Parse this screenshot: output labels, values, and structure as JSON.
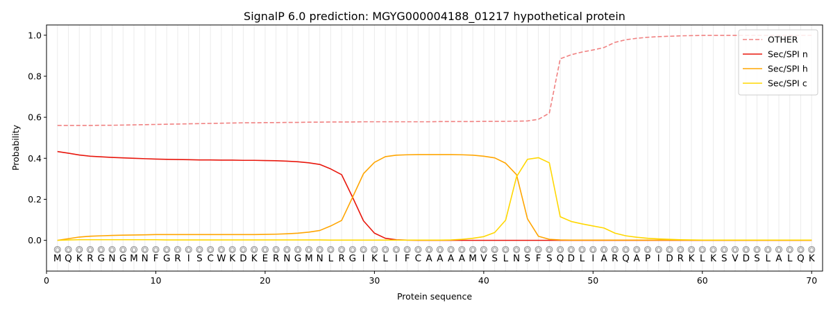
{
  "chart_data": {
    "type": "line",
    "title": "SignalP 6.0 prediction: MGYG000004188_01217 hypothetical protein",
    "xlabel": "Protein sequence",
    "ylabel": "Probability",
    "xlim": [
      0,
      71
    ],
    "ylim": [
      -0.15,
      1.05
    ],
    "x_ticks": [
      0,
      10,
      20,
      30,
      40,
      50,
      60,
      70
    ],
    "y_ticks": [
      0.0,
      0.2,
      0.4,
      0.6,
      0.8,
      1.0
    ],
    "x_tick_labels": [
      "0",
      "10",
      "20",
      "30",
      "40",
      "50",
      "60",
      "70"
    ],
    "y_tick_labels": [
      "0.0",
      "0.2",
      "0.4",
      "0.6",
      "0.8",
      "1.0"
    ],
    "sequence": [
      "M",
      "Q",
      "K",
      "R",
      "G",
      "N",
      "G",
      "M",
      "N",
      "F",
      "G",
      "R",
      "I",
      "S",
      "C",
      "W",
      "K",
      "D",
      "K",
      "E",
      "R",
      "N",
      "G",
      "M",
      "N",
      "L",
      "R",
      "G",
      "I",
      "K",
      "L",
      "I",
      "F",
      "C",
      "A",
      "A",
      "A",
      "A",
      "M",
      "V",
      "S",
      "L",
      "N",
      "S",
      "F",
      "S",
      "Q",
      "D",
      "L",
      "I",
      "A",
      "R",
      "Q",
      "A",
      "P",
      "I",
      "D",
      "R",
      "K",
      "L",
      "K",
      "S",
      "V",
      "D",
      "S",
      "L",
      "A",
      "L",
      "Q",
      "K"
    ],
    "region_marker": "O",
    "grid": "vertical",
    "legend_position": "top-right",
    "series": [
      {
        "name": "OTHER",
        "color": "#f08080",
        "style": "dashed",
        "values": [
          0.56,
          0.56,
          0.56,
          0.56,
          0.561,
          0.561,
          0.562,
          0.563,
          0.564,
          0.565,
          0.566,
          0.567,
          0.568,
          0.569,
          0.57,
          0.571,
          0.572,
          0.573,
          0.573,
          0.574,
          0.574,
          0.575,
          0.575,
          0.576,
          0.576,
          0.577,
          0.577,
          0.577,
          0.578,
          0.578,
          0.578,
          0.578,
          0.578,
          0.578,
          0.578,
          0.579,
          0.579,
          0.579,
          0.579,
          0.58,
          0.58,
          0.58,
          0.581,
          0.582,
          0.59,
          0.62,
          0.885,
          0.905,
          0.918,
          0.928,
          0.94,
          0.965,
          0.978,
          0.985,
          0.99,
          0.993,
          0.995,
          0.997,
          0.998,
          0.999,
          0.999,
          0.999,
          0.999,
          0.999,
          0.999,
          0.999,
          0.999,
          0.999,
          0.999,
          0.999
        ]
      },
      {
        "name": "Sec/SPI n",
        "color": "#e8160c",
        "style": "solid",
        "values": [
          0.433,
          0.425,
          0.416,
          0.41,
          0.407,
          0.404,
          0.402,
          0.4,
          0.398,
          0.396,
          0.395,
          0.394,
          0.393,
          0.392,
          0.392,
          0.391,
          0.391,
          0.39,
          0.39,
          0.389,
          0.388,
          0.386,
          0.383,
          0.378,
          0.37,
          0.348,
          0.32,
          0.21,
          0.095,
          0.035,
          0.01,
          0.003,
          0.001,
          0.0,
          0.0,
          0.0,
          0.0,
          0.0,
          0.0,
          0.0,
          0.0,
          0.0,
          0.0,
          0.0,
          0.0,
          0.0,
          0.0,
          0.0,
          0.0,
          0.0,
          0.0,
          0.0,
          0.0,
          0.0,
          0.0,
          0.0,
          0.0,
          0.0,
          0.0,
          0.0,
          0.0,
          0.0,
          0.0,
          0.0,
          0.0,
          0.0,
          0.0,
          0.0,
          0.0,
          0.0
        ]
      },
      {
        "name": "Sec/SPI h",
        "color": "#ffa500",
        "style": "solid",
        "values": [
          0.0,
          0.008,
          0.016,
          0.02,
          0.022,
          0.024,
          0.025,
          0.026,
          0.027,
          0.028,
          0.028,
          0.028,
          0.028,
          0.028,
          0.028,
          0.028,
          0.028,
          0.028,
          0.028,
          0.029,
          0.03,
          0.032,
          0.035,
          0.04,
          0.048,
          0.07,
          0.097,
          0.21,
          0.325,
          0.38,
          0.408,
          0.415,
          0.417,
          0.418,
          0.418,
          0.418,
          0.418,
          0.417,
          0.415,
          0.41,
          0.402,
          0.376,
          0.32,
          0.105,
          0.02,
          0.005,
          0.002,
          0.001,
          0.001,
          0.001,
          0.001,
          0.001,
          0.001,
          0.001,
          0.001,
          0.001,
          0.001,
          0.001,
          0.001,
          0.001,
          0.001,
          0.001,
          0.001,
          0.001,
          0.001,
          0.001,
          0.001,
          0.001,
          0.001,
          0.001
        ]
      },
      {
        "name": "Sec/SPI c",
        "color": "#ffd700",
        "style": "solid",
        "values": [
          0.0,
          0.002,
          0.003,
          0.003,
          0.003,
          0.003,
          0.003,
          0.003,
          0.003,
          0.003,
          0.002,
          0.002,
          0.002,
          0.002,
          0.002,
          0.002,
          0.002,
          0.002,
          0.002,
          0.002,
          0.002,
          0.002,
          0.002,
          0.002,
          0.002,
          0.001,
          0.001,
          0.001,
          0.001,
          0.001,
          0.001,
          0.001,
          0.001,
          0.001,
          0.001,
          0.001,
          0.002,
          0.005,
          0.01,
          0.018,
          0.038,
          0.098,
          0.31,
          0.395,
          0.403,
          0.378,
          0.115,
          0.092,
          0.08,
          0.07,
          0.06,
          0.035,
          0.022,
          0.015,
          0.01,
          0.007,
          0.005,
          0.003,
          0.002,
          0.001,
          0.001,
          0.001,
          0.001,
          0.001,
          0.001,
          0.001,
          0.001,
          0.001,
          0.001,
          0.001
        ]
      }
    ]
  }
}
